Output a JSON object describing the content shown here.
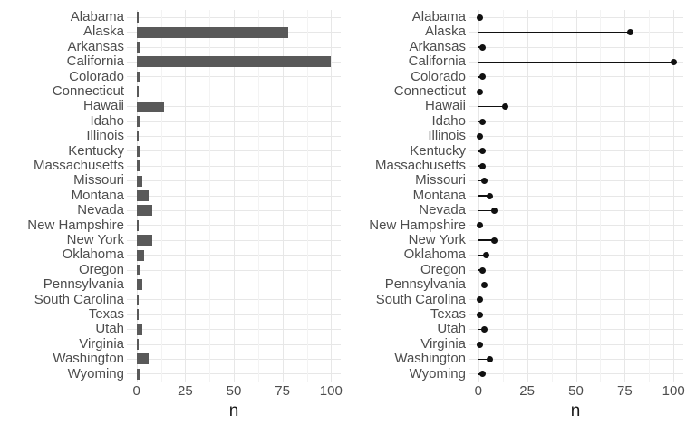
{
  "figure": {
    "background_color": "#FFFFFF",
    "bar_color": "#595959",
    "point_color": "#111111",
    "segment_color": "#111111",
    "grid_major_color": "#E7E7E7",
    "grid_minor_color": "#F3F3F3",
    "axis_text_color": "#4D4D4D",
    "axis_title_color": "#1A1A1A"
  },
  "chart_data": [
    {
      "type": "bar",
      "orientation": "horizontal",
      "title": "",
      "xlabel": "n",
      "ylabel": "",
      "legend": "none",
      "grid": "vertical major+minor, horizontal major per category",
      "xlim": [
        -5,
        105
      ],
      "x_ticks": [
        0,
        25,
        50,
        75,
        100
      ],
      "x_tick_labels": [
        "0",
        "25",
        "50",
        "75",
        "100"
      ],
      "x_minor_ticks": [
        12.5,
        37.5,
        62.5,
        87.5
      ],
      "categories": [
        "Alabama",
        "Alaska",
        "Arkansas",
        "California",
        "Colorado",
        "Connecticut",
        "Hawaii",
        "Idaho",
        "Illinois",
        "Kentucky",
        "Massachusetts",
        "Missouri",
        "Montana",
        "Nevada",
        "New Hampshire",
        "New York",
        "Oklahoma",
        "Oregon",
        "Pennsylvania",
        "South Carolina",
        "Texas",
        "Utah",
        "Virginia",
        "Washington",
        "Wyoming"
      ],
      "values": [
        1,
        78,
        2,
        100,
        2,
        1,
        14,
        2,
        1,
        2,
        2,
        3,
        6,
        8,
        1,
        8,
        4,
        2,
        3,
        1,
        1,
        3,
        1,
        6,
        2
      ]
    },
    {
      "type": "lollipop",
      "orientation": "horizontal",
      "title": "",
      "xlabel": "n",
      "ylabel": "",
      "legend": "none",
      "grid": "vertical major+minor, horizontal major per category",
      "xlim": [
        -5,
        105
      ],
      "x_ticks": [
        0,
        25,
        50,
        75,
        100
      ],
      "x_tick_labels": [
        "0",
        "25",
        "50",
        "75",
        "100"
      ],
      "x_minor_ticks": [
        12.5,
        37.5,
        62.5,
        87.5
      ],
      "categories": [
        "Alabama",
        "Alaska",
        "Arkansas",
        "California",
        "Colorado",
        "Connecticut",
        "Hawaii",
        "Idaho",
        "Illinois",
        "Kentucky",
        "Massachusetts",
        "Missouri",
        "Montana",
        "Nevada",
        "New Hampshire",
        "New York",
        "Oklahoma",
        "Oregon",
        "Pennsylvania",
        "South Carolina",
        "Texas",
        "Utah",
        "Virginia",
        "Washington",
        "Wyoming"
      ],
      "values": [
        1,
        78,
        2,
        100,
        2,
        1,
        14,
        2,
        1,
        2,
        2,
        3,
        6,
        8,
        1,
        8,
        4,
        2,
        3,
        1,
        1,
        3,
        1,
        6,
        2
      ]
    }
  ]
}
